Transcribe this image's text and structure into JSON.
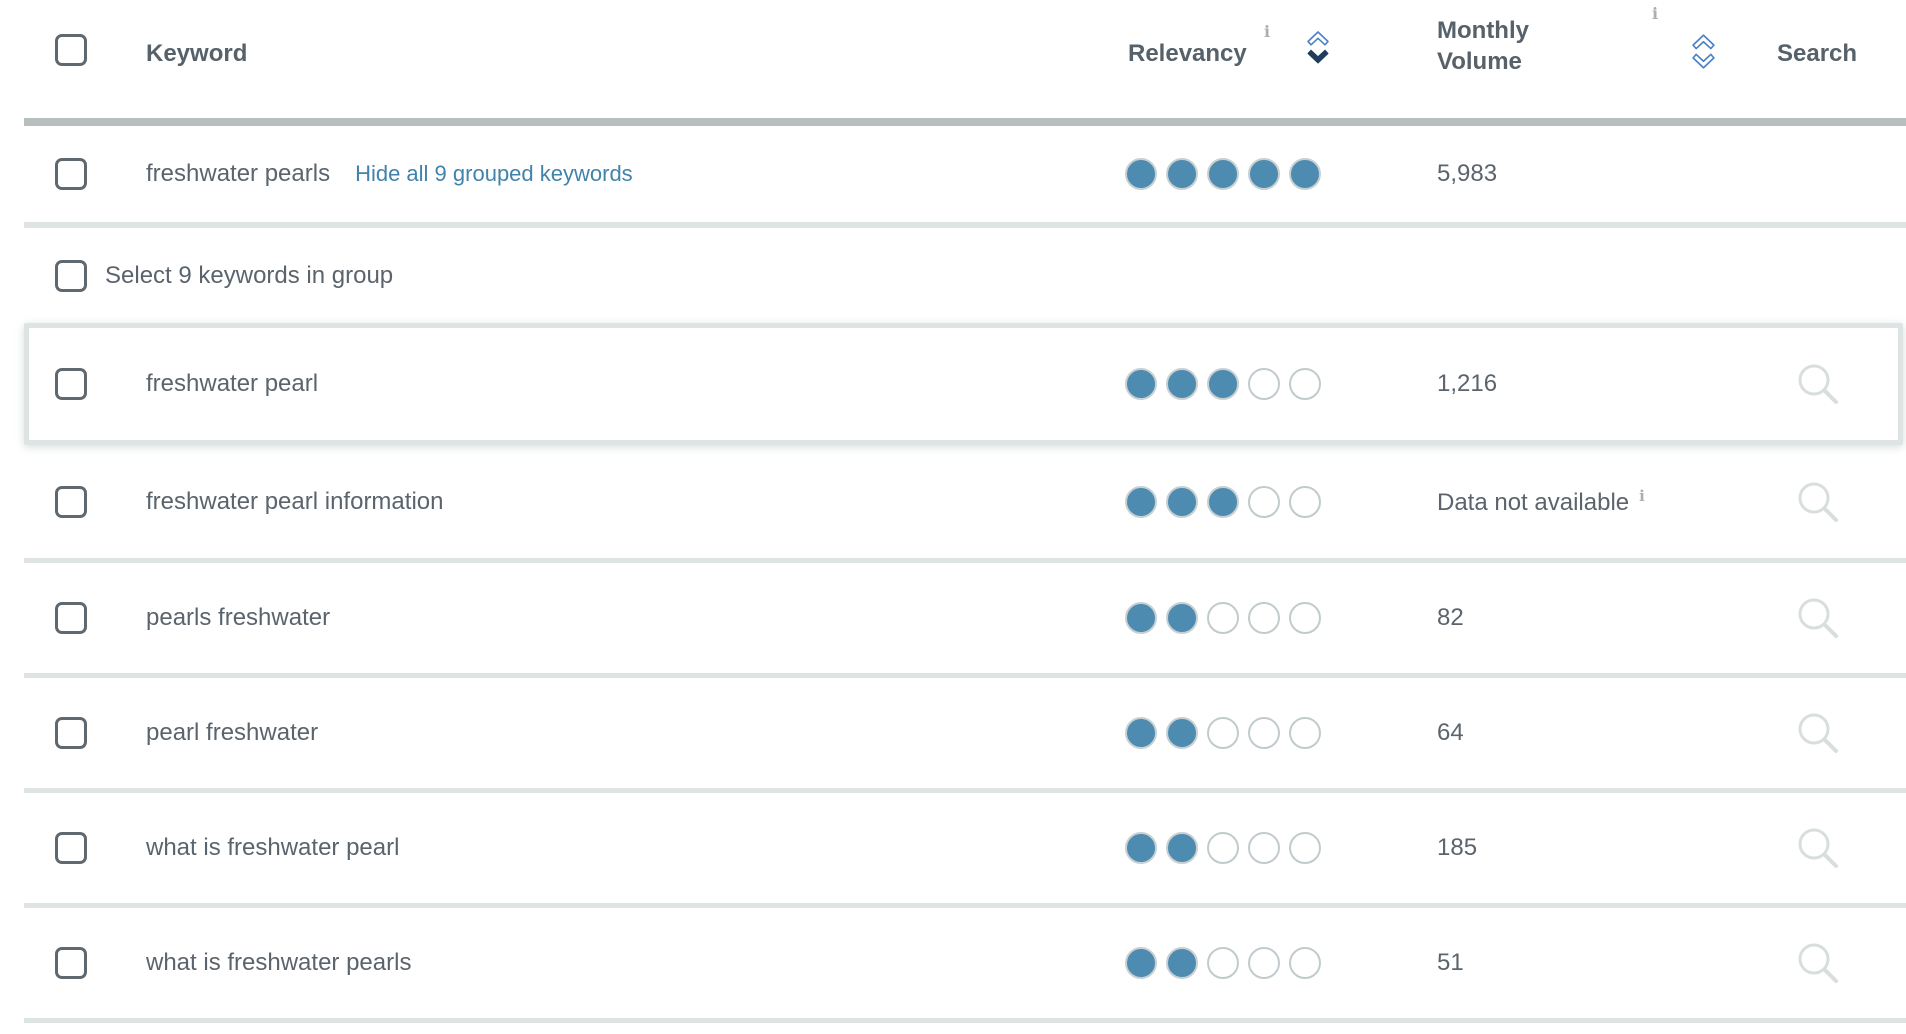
{
  "header": {
    "keyword": "Keyword",
    "relevancy": "Relevancy",
    "monthly_volume": "Monthly Volume",
    "search": "Search",
    "relevancy_sort": "desc",
    "monthly_volume_sort": "none"
  },
  "icons": {
    "info": "i"
  },
  "colors": {
    "link_blue": "#4183ac",
    "dot_filled_blue": "#4d8bb0",
    "sort_active_navy": "#1f3d5a",
    "sort_inactive_blue": "#4b82c3",
    "divider_gray": "#dde4e3",
    "header_bar_gray": "#b6bfbe",
    "text_gray": "#5b646d",
    "magnifier_gray": "#d8dede"
  },
  "rows": [
    {
      "kind": "keyword",
      "keyword": "freshwater pearls",
      "link": "Hide all 9 grouped keywords",
      "relevancy": 5,
      "volume": "5,983",
      "volume_info": false,
      "search_icon": false
    },
    {
      "kind": "select",
      "label": "Select 9 keywords in group"
    },
    {
      "kind": "keyword",
      "keyword": "freshwater pearl",
      "relevancy": 3,
      "volume": "1,216",
      "volume_info": false,
      "search_icon": true,
      "highlighted": true
    },
    {
      "kind": "keyword",
      "keyword": "freshwater pearl information",
      "relevancy": 3,
      "volume": "Data not available",
      "volume_info": true,
      "search_icon": true
    },
    {
      "kind": "keyword",
      "keyword": "pearls freshwater",
      "relevancy": 2,
      "volume": "82",
      "volume_info": false,
      "search_icon": true
    },
    {
      "kind": "keyword",
      "keyword": "pearl freshwater",
      "relevancy": 2,
      "volume": "64",
      "volume_info": false,
      "search_icon": true
    },
    {
      "kind": "keyword",
      "keyword": "what is freshwater pearl",
      "relevancy": 2,
      "volume": "185",
      "volume_info": false,
      "search_icon": true
    },
    {
      "kind": "keyword",
      "keyword": "what is freshwater pearls",
      "relevancy": 2,
      "volume": "51",
      "volume_info": false,
      "search_icon": true
    }
  ]
}
